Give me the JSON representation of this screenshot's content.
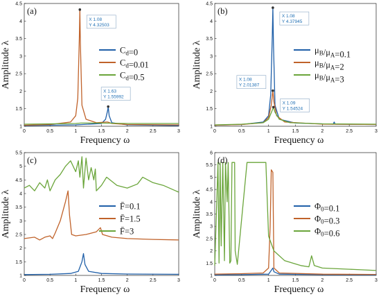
{
  "chart_data": [
    {
      "type": "line",
      "panel_label": "(a)",
      "xlabel": "Frequency  ω",
      "ylabel": "Amplitude  λ",
      "xlim": [
        0,
        3
      ],
      "ylim": [
        1,
        4.5
      ],
      "xticks": [
        "0",
        "0.5",
        "1",
        "1.5",
        "2",
        "2.5",
        "3"
      ],
      "yticks": [
        "1",
        "1.5",
        "2",
        "2.5",
        "3",
        "3.5",
        "4",
        "4.5"
      ],
      "legend_position": "right",
      "series": [
        {
          "name": "C_d=0",
          "color": "#1f5fa8",
          "points": [
            [
              0,
              1.02
            ],
            [
              0.5,
              1.03
            ],
            [
              1.0,
              1.04
            ],
            [
              1.5,
              1.08
            ],
            [
              1.58,
              1.2
            ],
            [
              1.62,
              1.45
            ],
            [
              1.63,
              1.56
            ],
            [
              1.65,
              1.3
            ],
            [
              1.7,
              1.1
            ],
            [
              2.0,
              1.04
            ],
            [
              3.0,
              1.02
            ]
          ]
        },
        {
          "name": "C_d=0.01",
          "color": "#c0622a",
          "points": [
            [
              0,
              1.03
            ],
            [
              0.5,
              1.05
            ],
            [
              0.9,
              1.12
            ],
            [
              1.0,
              1.3
            ],
            [
              1.04,
              1.8
            ],
            [
              1.07,
              3.5
            ],
            [
              1.08,
              4.325
            ],
            [
              1.09,
              3.4
            ],
            [
              1.12,
              1.6
            ],
            [
              1.2,
              1.2
            ],
            [
              1.4,
              1.1
            ],
            [
              1.6,
              1.12
            ],
            [
              1.62,
              1.12
            ],
            [
              1.7,
              1.08
            ],
            [
              2.0,
              1.05
            ],
            [
              3.0,
              1.04
            ]
          ]
        },
        {
          "name": "C_d=0.5",
          "color": "#6aa53a",
          "points": [
            [
              0,
              1.06
            ],
            [
              0.5,
              1.07
            ],
            [
              1.0,
              1.08
            ],
            [
              1.1,
              1.09
            ],
            [
              1.5,
              1.09
            ],
            [
              2.0,
              1.08
            ],
            [
              3.0,
              1.08
            ]
          ]
        }
      ],
      "datatips": [
        {
          "x_text": "X 1.08",
          "y_text": "Y 4.32503",
          "x": 1.08,
          "y": 4.32503
        },
        {
          "x_text": "X 1.63",
          "y_text": "Y 1.55992",
          "x": 1.63,
          "y": 1.55992
        }
      ]
    },
    {
      "type": "line",
      "panel_label": "(b)",
      "xlabel": "Frequency  ω",
      "ylabel": "Amplitude  λ",
      "xlim": [
        0,
        3
      ],
      "ylim": [
        1,
        4.5
      ],
      "xticks": [
        "0",
        "0.5",
        "1",
        "1.5",
        "2",
        "2.5",
        "3"
      ],
      "yticks": [
        "1",
        "1.5",
        "2",
        "2.5",
        "3",
        "3.5",
        "4",
        "4.5"
      ],
      "legend_position": "right",
      "series": [
        {
          "name": "μ_B/μ_A=0.1",
          "color": "#1f5fa8",
          "points": [
            [
              0,
              1.03
            ],
            [
              0.5,
              1.05
            ],
            [
              0.9,
              1.12
            ],
            [
              1.0,
              1.3
            ],
            [
              1.04,
              1.9
            ],
            [
              1.07,
              3.6
            ],
            [
              1.08,
              4.379
            ],
            [
              1.09,
              3.4
            ],
            [
              1.12,
              1.6
            ],
            [
              1.2,
              1.2
            ],
            [
              1.5,
              1.09
            ],
            [
              2.2,
              1.06
            ],
            [
              2.22,
              1.12
            ],
            [
              2.24,
              1.06
            ],
            [
              3.0,
              1.05
            ]
          ]
        },
        {
          "name": "μ_B/μ_A=2",
          "color": "#c0622a",
          "points": [
            [
              0,
              1.03
            ],
            [
              0.5,
              1.05
            ],
            [
              0.9,
              1.1
            ],
            [
              1.0,
              1.25
            ],
            [
              1.05,
              1.6
            ],
            [
              1.08,
              2.014
            ],
            [
              1.1,
              1.7
            ],
            [
              1.15,
              1.3
            ],
            [
              1.3,
              1.12
            ],
            [
              2.0,
              1.06
            ],
            [
              3.0,
              1.05
            ]
          ]
        },
        {
          "name": "μ_B/μ_A=3",
          "color": "#6aa53a",
          "points": [
            [
              0,
              1.04
            ],
            [
              0.5,
              1.06
            ],
            [
              0.9,
              1.1
            ],
            [
              1.0,
              1.2
            ],
            [
              1.06,
              1.42
            ],
            [
              1.09,
              1.545
            ],
            [
              1.12,
              1.4
            ],
            [
              1.2,
              1.2
            ],
            [
              1.4,
              1.1
            ],
            [
              2.0,
              1.07
            ],
            [
              3.0,
              1.06
            ]
          ]
        }
      ],
      "datatips": [
        {
          "x_text": "X 1.08",
          "y_text": "Y 4.37945",
          "x": 1.08,
          "y": 4.37945
        },
        {
          "x_text": "X 1.08",
          "y_text": "Y 2.01387",
          "x": 1.08,
          "y": 2.01387
        },
        {
          "x_text": "X 1.09",
          "y_text": "Y 1.54524",
          "x": 1.09,
          "y": 1.54524
        }
      ]
    },
    {
      "type": "line",
      "panel_label": "(c)",
      "xlabel": "Frequency  ω",
      "ylabel": "Amplitude  λ",
      "xlim": [
        0,
        3
      ],
      "ylim": [
        1,
        5.5
      ],
      "xticks": [
        "0",
        "0.5",
        "1",
        "1.5",
        "2",
        "2.5",
        "3"
      ],
      "yticks": [
        "1",
        "1.5",
        "2",
        "2.5",
        "3",
        "3.5",
        "4",
        "4.5",
        "5",
        "5.5"
      ],
      "legend_position": "right",
      "series": [
        {
          "name": "F̄=0.1",
          "color": "#1f5fa8",
          "points": [
            [
              0,
              1.03
            ],
            [
              0.5,
              1.04
            ],
            [
              0.9,
              1.07
            ],
            [
              1.05,
              1.15
            ],
            [
              1.12,
              1.5
            ],
            [
              1.15,
              1.8
            ],
            [
              1.18,
              1.4
            ],
            [
              1.25,
              1.15
            ],
            [
              1.5,
              1.07
            ],
            [
              2.0,
              1.05
            ],
            [
              3.0,
              1.04
            ]
          ]
        },
        {
          "name": "F̄=1.5",
          "color": "#c0622a",
          "points": [
            [
              0,
              2.35
            ],
            [
              0.2,
              2.4
            ],
            [
              0.3,
              2.3
            ],
            [
              0.4,
              2.4
            ],
            [
              0.5,
              2.45
            ],
            [
              0.55,
              2.35
            ],
            [
              0.6,
              2.55
            ],
            [
              0.7,
              3.0
            ],
            [
              0.8,
              3.7
            ],
            [
              0.85,
              4.1
            ],
            [
              0.88,
              3.2
            ],
            [
              0.92,
              2.5
            ],
            [
              1.0,
              2.45
            ],
            [
              1.2,
              2.5
            ],
            [
              1.4,
              2.6
            ],
            [
              1.48,
              2.75
            ],
            [
              1.52,
              2.5
            ],
            [
              1.7,
              2.4
            ],
            [
              2.0,
              2.35
            ],
            [
              2.5,
              2.32
            ],
            [
              3.0,
              2.3
            ]
          ]
        },
        {
          "name": "F̄=3",
          "color": "#6aa53a",
          "points": [
            [
              0,
              4.2
            ],
            [
              0.1,
              4.3
            ],
            [
              0.2,
              4.1
            ],
            [
              0.3,
              4.4
            ],
            [
              0.4,
              4.2
            ],
            [
              0.45,
              4.5
            ],
            [
              0.5,
              4.1
            ],
            [
              0.6,
              4.5
            ],
            [
              0.7,
              4.7
            ],
            [
              0.8,
              5.0
            ],
            [
              0.9,
              5.2
            ],
            [
              1.0,
              4.8
            ],
            [
              1.05,
              5.2
            ],
            [
              1.08,
              4.6
            ],
            [
              1.12,
              5.35
            ],
            [
              1.15,
              4.2
            ],
            [
              1.2,
              5.3
            ],
            [
              1.25,
              4.5
            ],
            [
              1.3,
              4.95
            ],
            [
              1.35,
              4.5
            ],
            [
              1.38,
              4.9
            ],
            [
              1.4,
              4.1
            ],
            [
              1.5,
              4.3
            ],
            [
              1.6,
              4.6
            ],
            [
              1.8,
              4.3
            ],
            [
              2.0,
              4.2
            ],
            [
              2.2,
              4.35
            ],
            [
              2.3,
              4.6
            ],
            [
              2.5,
              4.4
            ],
            [
              2.7,
              4.3
            ],
            [
              3.0,
              4.05
            ]
          ]
        }
      ]
    },
    {
      "type": "line",
      "panel_label": "(d)",
      "xlabel": "Frequency  ω",
      "ylabel": "Amplitude  λ",
      "xlim": [
        0,
        3
      ],
      "ylim": [
        1,
        6
      ],
      "xticks": [
        "0",
        "0.5",
        "1",
        "1.5",
        "2",
        "2.5",
        "3"
      ],
      "yticks": [
        "1",
        "1.5",
        "2",
        "2.5",
        "3",
        "3.5",
        "4",
        "4.5",
        "5",
        "5.5",
        "6"
      ],
      "legend_position": "right",
      "series": [
        {
          "name": "Φ_0=0.1",
          "color": "#1f5fa8",
          "points": [
            [
              0,
              1.02
            ],
            [
              0.5,
              1.03
            ],
            [
              1.0,
              1.05
            ],
            [
              1.08,
              1.3
            ],
            [
              1.1,
              1.15
            ],
            [
              1.2,
              1.05
            ],
            [
              2.0,
              1.03
            ],
            [
              3.0,
              1.02
            ]
          ]
        },
        {
          "name": "Φ_0=0.3",
          "color": "#c0622a",
          "points": [
            [
              0,
              1.05
            ],
            [
              0.5,
              1.07
            ],
            [
              0.9,
              1.1
            ],
            [
              1.0,
              1.3
            ],
            [
              1.03,
              3.0
            ],
            [
              1.05,
              5.3
            ],
            [
              1.08,
              5.2
            ],
            [
              1.1,
              1.3
            ],
            [
              1.2,
              1.1
            ],
            [
              2.0,
              1.05
            ],
            [
              3.0,
              1.04
            ]
          ]
        },
        {
          "name": "Φ_0=0.6",
          "color": "#6aa53a",
          "points": [
            [
              0,
              1.4
            ],
            [
              0.06,
              5.6
            ],
            [
              0.08,
              1.5
            ],
            [
              0.1,
              5.6
            ],
            [
              0.12,
              2.2
            ],
            [
              0.15,
              5.6
            ],
            [
              0.18,
              1.6
            ],
            [
              0.2,
              5.6
            ],
            [
              0.23,
              4.0
            ],
            [
              0.25,
              5.6
            ],
            [
              0.28,
              1.5
            ],
            [
              0.3,
              1.6
            ],
            [
              0.32,
              5.6
            ],
            [
              0.37,
              5.6
            ],
            [
              0.38,
              2.0
            ],
            [
              0.42,
              1.45
            ],
            [
              0.6,
              5.6
            ],
            [
              0.95,
              5.6
            ],
            [
              1.0,
              2.6
            ],
            [
              1.1,
              2.0
            ],
            [
              1.3,
              1.6
            ],
            [
              1.6,
              1.4
            ],
            [
              1.75,
              1.35
            ],
            [
              1.8,
              1.8
            ],
            [
              1.85,
              1.4
            ],
            [
              2.0,
              1.3
            ],
            [
              2.5,
              1.25
            ],
            [
              3.0,
              1.2
            ]
          ]
        }
      ]
    }
  ]
}
